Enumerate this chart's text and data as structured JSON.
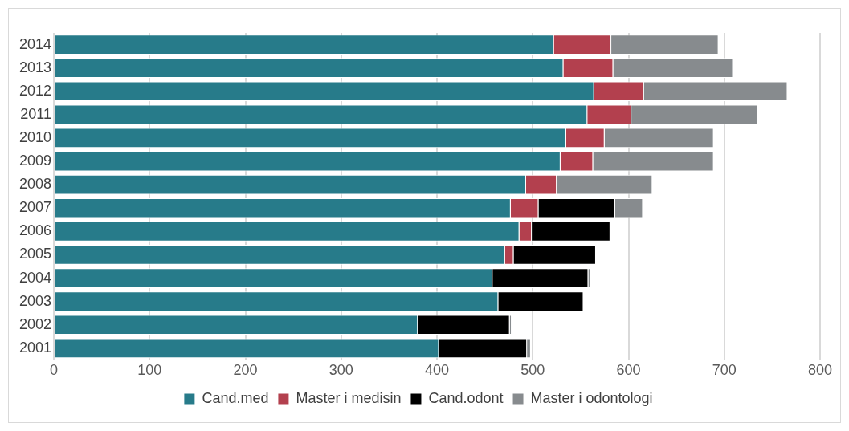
{
  "chart_data": {
    "type": "bar",
    "orientation": "horizontal",
    "stacked": true,
    "categories": [
      "2014",
      "2013",
      "2012",
      "2011",
      "2010",
      "2009",
      "2008",
      "2007",
      "2006",
      "2005",
      "2004",
      "2003",
      "2002",
      "2001"
    ],
    "series": [
      {
        "name": "Cand.med",
        "color": "#277b8a",
        "values": [
          522,
          532,
          564,
          557,
          535,
          529,
          493,
          477,
          486,
          471,
          458,
          464,
          380,
          402
        ]
      },
      {
        "name": "Master i medisin",
        "color": "#b3404e",
        "values": [
          60,
          52,
          52,
          46,
          40,
          34,
          32,
          29,
          13,
          9,
          null,
          null,
          null,
          null
        ]
      },
      {
        "name": "Cand.odont",
        "color": "#000000",
        "values": [
          null,
          null,
          null,
          null,
          null,
          null,
          null,
          80,
          82,
          86,
          100,
          89,
          96,
          92
        ]
      },
      {
        "name": "Master i odontologi",
        "color": "#878b8e",
        "values": [
          112,
          125,
          150,
          132,
          114,
          126,
          100,
          29,
          null,
          null,
          3,
          null,
          2,
          4
        ]
      }
    ],
    "xlim": [
      0,
      800
    ],
    "xticks": [
      0,
      100,
      200,
      300,
      400,
      500,
      600,
      700,
      800
    ],
    "grid": "x",
    "legend": "bottom"
  }
}
